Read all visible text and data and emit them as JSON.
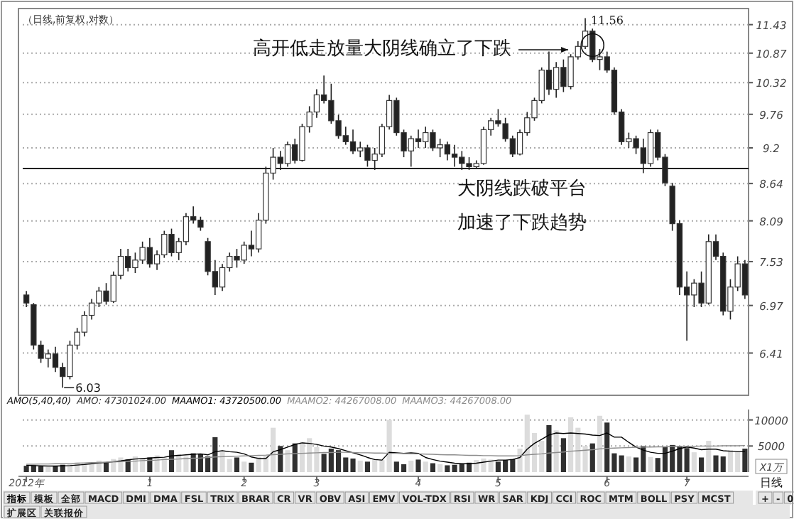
{
  "chart_data": [
    {
      "type": "candlestick",
      "title": "（日线,前复权,对数）",
      "log": "y",
      "grid": "y",
      "tick_labels": "y",
      "ylim": [
        5.98,
        11.7
      ],
      "yticks": [
        6.41,
        6.97,
        7.53,
        8.09,
        8.64,
        9.2,
        9.76,
        10.32,
        10.87,
        11.43
      ],
      "categories": [
        null,
        null,
        null,
        null,
        null,
        null,
        null,
        null,
        null,
        null,
        null,
        null,
        null,
        null,
        null,
        null,
        null,
        null,
        null,
        null,
        null,
        null,
        null,
        null,
        null,
        null,
        null,
        null,
        null,
        null,
        null,
        null,
        null,
        null,
        null,
        null,
        null,
        null,
        null,
        null,
        null,
        null,
        null,
        null,
        null,
        null,
        null,
        null,
        null,
        null,
        null,
        null,
        null,
        null,
        null,
        null,
        null,
        null,
        null,
        null,
        null,
        null,
        null,
        null,
        null,
        null,
        null,
        null,
        null,
        null,
        null,
        null,
        null,
        null,
        null,
        null,
        null,
        null,
        null,
        null,
        null,
        null,
        null,
        null,
        null,
        null,
        null,
        null,
        null,
        null,
        null,
        null,
        null,
        null,
        null,
        null,
        null,
        null,
        null,
        null
      ],
      "ohlc": [
        [
          7.1,
          7.15,
          6.95,
          7.0
        ],
        [
          6.98,
          7.0,
          6.45,
          6.5
        ],
        [
          6.5,
          6.55,
          6.3,
          6.35
        ],
        [
          6.35,
          6.45,
          6.25,
          6.4
        ],
        [
          6.4,
          6.48,
          6.2,
          6.25
        ],
        [
          6.25,
          6.3,
          6.03,
          6.15
        ],
        [
          6.15,
          6.55,
          6.12,
          6.5
        ],
        [
          6.5,
          6.7,
          6.45,
          6.65
        ],
        [
          6.65,
          6.9,
          6.6,
          6.85
        ],
        [
          6.85,
          7.05,
          6.8,
          7.0
        ],
        [
          7.0,
          7.2,
          6.95,
          7.15
        ],
        [
          7.15,
          7.25,
          6.98,
          7.02
        ],
        [
          7.02,
          7.4,
          7.0,
          7.35
        ],
        [
          7.35,
          7.7,
          7.3,
          7.6
        ],
        [
          7.6,
          7.7,
          7.4,
          7.45
        ],
        [
          7.45,
          7.65,
          7.38,
          7.55
        ],
        [
          7.55,
          7.8,
          7.5,
          7.72
        ],
        [
          7.72,
          7.85,
          7.45,
          7.5
        ],
        [
          7.5,
          7.68,
          7.42,
          7.62
        ],
        [
          7.62,
          7.95,
          7.58,
          7.9
        ],
        [
          7.9,
          7.98,
          7.6,
          7.65
        ],
        [
          7.65,
          7.85,
          7.55,
          7.8
        ],
        [
          7.8,
          8.2,
          7.75,
          8.15
        ],
        [
          8.15,
          8.3,
          8.05,
          8.1
        ],
        [
          8.1,
          8.15,
          7.95,
          8.0
        ],
        [
          7.8,
          7.85,
          7.35,
          7.4
        ],
        [
          7.4,
          7.55,
          7.1,
          7.2
        ],
        [
          7.2,
          7.5,
          7.15,
          7.45
        ],
        [
          7.45,
          7.65,
          7.4,
          7.6
        ],
        [
          7.6,
          7.7,
          7.45,
          7.55
        ],
        [
          7.55,
          7.8,
          7.5,
          7.75
        ],
        [
          7.75,
          7.95,
          7.6,
          7.7
        ],
        [
          7.7,
          8.2,
          7.65,
          8.1
        ],
        [
          8.1,
          8.9,
          8.05,
          8.8
        ],
        [
          8.8,
          9.2,
          8.7,
          9.05
        ],
        [
          9.05,
          9.15,
          8.85,
          8.95
        ],
        [
          8.95,
          9.3,
          8.9,
          9.25
        ],
        [
          9.25,
          9.35,
          8.95,
          9.0
        ],
        [
          9.0,
          9.6,
          8.98,
          9.55
        ],
        [
          9.55,
          9.9,
          9.45,
          9.8
        ],
        [
          9.8,
          10.2,
          9.7,
          10.1
        ],
        [
          10.1,
          10.45,
          9.95,
          10.0
        ],
        [
          10.0,
          10.3,
          9.6,
          9.65
        ],
        [
          9.65,
          9.75,
          9.35,
          9.4
        ],
        [
          9.4,
          9.55,
          9.25,
          9.3
        ],
        [
          9.3,
          9.5,
          9.1,
          9.15
        ],
        [
          9.15,
          9.3,
          9.05,
          9.2
        ],
        [
          9.2,
          9.25,
          8.9,
          9.0
        ],
        [
          9.0,
          9.2,
          8.85,
          9.1
        ],
        [
          9.1,
          9.6,
          9.05,
          9.55
        ],
        [
          9.55,
          10.1,
          9.5,
          10.0
        ],
        [
          10.0,
          10.05,
          9.4,
          9.45
        ],
        [
          9.45,
          9.5,
          9.05,
          9.15
        ],
        [
          9.15,
          9.4,
          8.9,
          9.35
        ],
        [
          9.35,
          9.5,
          9.2,
          9.3
        ],
        [
          9.3,
          9.55,
          9.2,
          9.45
        ],
        [
          9.45,
          9.5,
          9.15,
          9.2
        ],
        [
          9.2,
          9.35,
          9.05,
          9.25
        ],
        [
          9.25,
          9.3,
          9.0,
          9.1
        ],
        [
          9.1,
          9.25,
          8.9,
          9.05
        ],
        [
          9.05,
          9.15,
          8.85,
          8.95
        ],
        [
          8.95,
          9.05,
          8.85,
          8.9
        ],
        [
          8.9,
          9.0,
          8.86,
          8.95
        ],
        [
          8.95,
          9.55,
          8.93,
          9.5
        ],
        [
          9.5,
          9.7,
          9.4,
          9.65
        ],
        [
          9.65,
          9.85,
          9.55,
          9.6
        ],
        [
          9.6,
          9.7,
          9.3,
          9.35
        ],
        [
          9.35,
          9.4,
          9.05,
          9.1
        ],
        [
          9.1,
          9.5,
          9.08,
          9.45
        ],
        [
          9.45,
          9.8,
          9.4,
          9.7
        ],
        [
          9.7,
          10.05,
          9.65,
          10.0
        ],
        [
          10.0,
          10.6,
          9.95,
          10.55
        ],
        [
          10.55,
          10.9,
          10.1,
          10.2
        ],
        [
          10.2,
          10.7,
          10.05,
          10.6
        ],
        [
          10.6,
          10.75,
          10.15,
          10.25
        ],
        [
          10.25,
          10.85,
          10.2,
          10.8
        ],
        [
          10.8,
          11.1,
          10.75,
          11.0
        ],
        [
          11.0,
          11.56,
          10.95,
          11.3
        ],
        [
          11.3,
          11.35,
          10.7,
          10.75
        ],
        [
          10.75,
          10.95,
          10.55,
          10.8
        ],
        [
          10.8,
          10.9,
          10.5,
          10.55
        ],
        [
          10.55,
          10.6,
          9.75,
          9.8
        ],
        [
          9.8,
          9.85,
          9.25,
          9.3
        ],
        [
          9.3,
          9.45,
          9.2,
          9.35
        ],
        [
          9.35,
          9.4,
          9.1,
          9.2
        ],
        [
          9.2,
          9.35,
          8.8,
          8.95
        ],
        [
          8.95,
          9.5,
          8.9,
          9.45
        ],
        [
          9.45,
          9.5,
          9.0,
          9.05
        ],
        [
          9.05,
          9.1,
          8.6,
          8.65
        ],
        [
          8.6,
          8.65,
          7.95,
          8.05
        ],
        [
          8.05,
          8.1,
          7.1,
          7.2
        ],
        [
          7.2,
          7.4,
          6.55,
          7.1
        ],
        [
          7.1,
          7.3,
          6.95,
          7.25
        ],
        [
          7.25,
          7.4,
          6.95,
          7.0
        ],
        [
          7.0,
          7.9,
          6.98,
          7.8
        ],
        [
          7.8,
          7.9,
          7.55,
          7.6
        ],
        [
          7.6,
          7.65,
          6.85,
          6.9
        ],
        [
          6.9,
          7.3,
          6.8,
          7.2
        ],
        [
          7.2,
          7.6,
          7.15,
          7.5
        ],
        [
          7.5,
          7.55,
          7.05,
          7.1
        ]
      ],
      "ref_lines": [
        {
          "axis": "y",
          "value": 8.87,
          "color": "#000000"
        }
      ],
      "annotations": [
        "高开低走放量大阴线确立了下跌",
        "大阴线跌破平台",
        "加速了下跌趋势",
        "11.56",
        "6.03"
      ]
    },
    {
      "type": "bar",
      "title": "AMO(5,40,40)",
      "grid": "y",
      "legend": "top left",
      "ylabel": "X1万",
      "ylim": [
        0,
        12000
      ],
      "yticks": [
        5000,
        10000
      ],
      "categories": [
        "2012年",
        null,
        null,
        null,
        null,
        null,
        null,
        null,
        null,
        null,
        null,
        null,
        null,
        null,
        null,
        null,
        null,
        "1",
        null,
        null,
        null,
        null,
        null,
        null,
        null,
        null,
        null,
        null,
        null,
        null,
        "2",
        null,
        null,
        null,
        null,
        null,
        null,
        null,
        null,
        null,
        "3",
        null,
        null,
        null,
        null,
        null,
        null,
        null,
        null,
        null,
        null,
        null,
        null,
        null,
        "4",
        null,
        null,
        null,
        null,
        null,
        null,
        null,
        null,
        null,
        null,
        "5",
        null,
        null,
        null,
        null,
        null,
        null,
        null,
        null,
        null,
        null,
        null,
        null,
        null,
        null,
        "6",
        null,
        null,
        null,
        null,
        null,
        null,
        null,
        null,
        null,
        null,
        "7",
        null,
        null,
        null,
        null,
        null,
        null,
        null,
        null
      ],
      "series": [
        {
          "name": "AMO: 47301024.00",
          "type": "bar",
          "color": "#303030",
          "values": [
            1200,
            1300,
            1100,
            1000,
            1200,
            1400,
            1500,
            1800,
            1700,
            1600,
            2200,
            1900,
            2500,
            2800,
            2400,
            3000,
            2600,
            2800,
            3200,
            2700,
            4200,
            3400,
            3000,
            3600,
            3500,
            3000,
            6700,
            3800,
            2500,
            2800,
            2000,
            1800,
            2900,
            3200,
            8500,
            5000,
            4200,
            5500,
            5800,
            6500,
            4800,
            3500,
            4500,
            4200,
            2800,
            2600,
            2200,
            2000,
            2400,
            2300,
            10000,
            2000,
            1500,
            2200,
            2400,
            2000,
            1700,
            1500,
            1300,
            1400,
            1600,
            1800,
            2300,
            2600,
            2400,
            2000,
            2300,
            2500,
            4500,
            11000,
            7500,
            6000,
            9000,
            8000,
            6500,
            10500,
            8500,
            5000,
            5500,
            10800,
            9500,
            3600,
            3200,
            3000,
            2800,
            5000,
            2900,
            2700,
            4800,
            5200,
            5000,
            4600,
            3800,
            2800,
            6000,
            3200,
            3000,
            4200,
            3800,
            4500
          ],
          "colors": [
            "#303030",
            "#303030",
            "#303030",
            "#dcdcdc",
            "#303030",
            "#303030",
            "#dcdcdc",
            "#dcdcdc",
            "#dcdcdc",
            "#dcdcdc",
            "#dcdcdc",
            "#303030",
            "#dcdcdc",
            "#dcdcdc",
            "#303030",
            "#dcdcdc",
            "#dcdcdc",
            "#303030",
            "#dcdcdc",
            "#dcdcdc",
            "#303030",
            "#dcdcdc",
            "#dcdcdc",
            "#303030",
            "#303030",
            "#303030",
            "#303030",
            "#dcdcdc",
            "#dcdcdc",
            "#303030",
            "#dcdcdc",
            "#303030",
            "#dcdcdc",
            "#dcdcdc",
            "#dcdcdc",
            "#303030",
            "#dcdcdc",
            "#303030",
            "#dcdcdc",
            "#dcdcdc",
            "#dcdcdc",
            "#303030",
            "#303030",
            "#303030",
            "#303030",
            "#303030",
            "#dcdcdc",
            "#303030",
            "#dcdcdc",
            "#dcdcdc",
            "#dcdcdc",
            "#303030",
            "#303030",
            "#dcdcdc",
            "#303030",
            "#dcdcdc",
            "#303030",
            "#dcdcdc",
            "#303030",
            "#303030",
            "#303030",
            "#303030",
            "#dcdcdc",
            "#dcdcdc",
            "#dcdcdc",
            "#303030",
            "#303030",
            "#303030",
            "#dcdcdc",
            "#dcdcdc",
            "#dcdcdc",
            "#dcdcdc",
            "#303030",
            "#dcdcdc",
            "#303030",
            "#dcdcdc",
            "#dcdcdc",
            "#dcdcdc",
            "#303030",
            "#dcdcdc",
            "#303030",
            "#303030",
            "#303030",
            "#dcdcdc",
            "#303030",
            "#303030",
            "#dcdcdc",
            "#303030",
            "#303030",
            "#303030",
            "#303030",
            "#303030",
            "#dcdcdc",
            "#303030",
            "#dcdcdc",
            "#303030",
            "#303030",
            "#dcdcdc",
            "#dcdcdc",
            "#303030"
          ]
        },
        {
          "name": "MAAMO1: 43720500.00",
          "type": "line",
          "color": "#000000",
          "values": [
            1300,
            1250,
            1200,
            1150,
            1150,
            1200,
            1250,
            1350,
            1450,
            1600,
            1750,
            1850,
            2000,
            2150,
            2350,
            2500,
            2600,
            2700,
            2800,
            2850,
            3100,
            3200,
            3300,
            3400,
            3500,
            3300,
            3900,
            4100,
            3900,
            3800,
            3500,
            2900,
            2600,
            2600,
            3900,
            4300,
            4800,
            5300,
            5600,
            5500,
            5300,
            5000,
            4800,
            4500,
            4100,
            3700,
            3300,
            2800,
            2400,
            2300,
            3800,
            3700,
            3600,
            3700,
            3600,
            2800,
            2400,
            2100,
            1900,
            1700,
            1600,
            1600,
            1700,
            1900,
            2100,
            2300,
            2300,
            2400,
            2800,
            4400,
            5500,
            6300,
            7100,
            7500,
            7400,
            7500,
            7400,
            7300,
            7100,
            7000,
            7500,
            6700,
            6700,
            5700,
            4800,
            4200,
            3800,
            3600,
            3600,
            4000,
            4500,
            4800,
            4600,
            4300,
            4400,
            4400,
            4100,
            4000,
            3900,
            3900
          ]
        },
        {
          "name": "MAAMO2: 44267008.00",
          "type": "line",
          "color": "#8c8c8c",
          "values": [
            1500,
            1500,
            1550,
            1550,
            1600,
            1600,
            1650,
            1700,
            1750,
            1800,
            1850,
            1900,
            1950,
            2000,
            2050,
            2100,
            2200,
            2250,
            2300,
            2400,
            2450,
            2500,
            2600,
            2650,
            2700,
            2800,
            2900,
            2950,
            3000,
            3050,
            3100,
            3150,
            3200,
            3250,
            3350,
            3400,
            3500,
            3550,
            3600,
            3650,
            3700,
            3750,
            3750,
            3800,
            3800,
            3750,
            3700,
            3700,
            3650,
            3650,
            3600,
            3600,
            3550,
            3500,
            3500,
            3450,
            3400,
            3350,
            3300,
            3300,
            3250,
            3200,
            3200,
            3150,
            3150,
            3100,
            3100,
            3100,
            3150,
            3300,
            3400,
            3500,
            3650,
            3750,
            3850,
            4000,
            4100,
            4200,
            4300,
            4450,
            4550,
            4600,
            4650,
            4700,
            4750,
            4800,
            4800,
            4850,
            4850,
            4900,
            4900,
            4950,
            4950,
            5000,
            5000,
            5000,
            5050,
            5050,
            5050,
            5100
          ]
        }
      ],
      "annotations": [
        "MAAMO3: 44267008.00",
        "日线"
      ]
    },
    {
      "type": "other",
      "annotations": [
        "指标",
        "模板",
        "全部",
        "MACD",
        "DMI",
        "DMA",
        "FSL",
        "TRIX",
        "BRAR",
        "CR",
        "VR",
        "OBV",
        "ASI",
        "EMV",
        "VOL-TDX",
        "RSI",
        "WR",
        "SAR",
        "KDJ",
        "CCI",
        "ROC",
        "MTM",
        "BOLL",
        "PSY",
        "MCST"
      ]
    },
    {
      "type": "other",
      "annotations": [
        "+",
        "-",
        "0"
      ]
    },
    {
      "type": "other",
      "annotations": [
        "扩展区",
        "关联报价"
      ]
    }
  ]
}
